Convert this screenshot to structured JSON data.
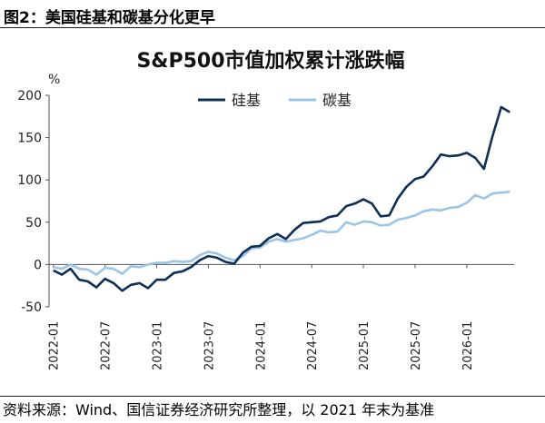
{
  "figure": {
    "label": "图2：美国硅基和碳基分化更早",
    "source": "资料来源：Wind、国信证券经济研究所整理，以 2021 年末为基准"
  },
  "colors": {
    "silicon": "#0e2f56",
    "carbon": "#9cc4e8",
    "axis": "#555555"
  },
  "chart_data": {
    "type": "line",
    "title": "S&P500市值加权累计涨跌幅",
    "ylabel": "%",
    "ylim": [
      -50,
      200
    ],
    "yticks": [
      -50,
      0,
      50,
      100,
      150,
      200
    ],
    "xticks": [
      "2022-01",
      "2022-07",
      "2023-01",
      "2023-07",
      "2024-01",
      "2024-07",
      "2025-01",
      "2025-07",
      "2026-01"
    ],
    "legend_position": "top-center",
    "x": [
      "2022-01",
      "2022-02",
      "2022-03",
      "2022-04",
      "2022-05",
      "2022-06",
      "2022-07",
      "2022-08",
      "2022-09",
      "2022-10",
      "2022-11",
      "2022-12",
      "2023-01",
      "2023-02",
      "2023-03",
      "2023-04",
      "2023-05",
      "2023-06",
      "2023-07",
      "2023-08",
      "2023-09",
      "2023-10",
      "2023-11",
      "2023-12",
      "2024-01",
      "2024-02",
      "2024-03",
      "2024-04",
      "2024-05",
      "2024-06",
      "2024-07",
      "2024-08",
      "2024-09",
      "2024-10",
      "2024-11",
      "2024-12",
      "2025-01",
      "2025-02",
      "2025-03",
      "2025-04",
      "2025-05",
      "2025-06",
      "2025-07",
      "2025-08",
      "2025-09",
      "2025-10",
      "2025-11",
      "2025-12",
      "2026-01",
      "2026-02",
      "2026-03",
      "2026-04",
      "2026-05",
      "2026-06"
    ],
    "series": [
      {
        "name": "硅基",
        "values": [
          -7,
          -12,
          -5,
          -18,
          -20,
          -27,
          -17,
          -22,
          -31,
          -24,
          -22,
          -28,
          -18,
          -18,
          -10,
          -8,
          -3,
          5,
          10,
          8,
          3,
          1,
          14,
          21,
          22,
          31,
          36,
          30,
          41,
          49,
          50,
          51,
          56,
          58,
          69,
          72,
          77,
          72,
          57,
          58,
          78,
          92,
          101,
          104,
          116,
          130,
          128,
          129,
          132,
          126,
          113,
          152,
          186,
          180
        ]
      },
      {
        "name": "碳基",
        "values": [
          -3,
          -5,
          0,
          -5,
          -6,
          -12,
          -4,
          -5,
          -11,
          -2,
          -3,
          0,
          2,
          2,
          4,
          3,
          4,
          11,
          15,
          13,
          8,
          5,
          10,
          19,
          20,
          27,
          30,
          27,
          29,
          31,
          35,
          40,
          38,
          39,
          50,
          47,
          51,
          50,
          46,
          47,
          53,
          55,
          58,
          63,
          65,
          64,
          67,
          68,
          73,
          82,
          78,
          84,
          85,
          86
        ]
      }
    ]
  }
}
